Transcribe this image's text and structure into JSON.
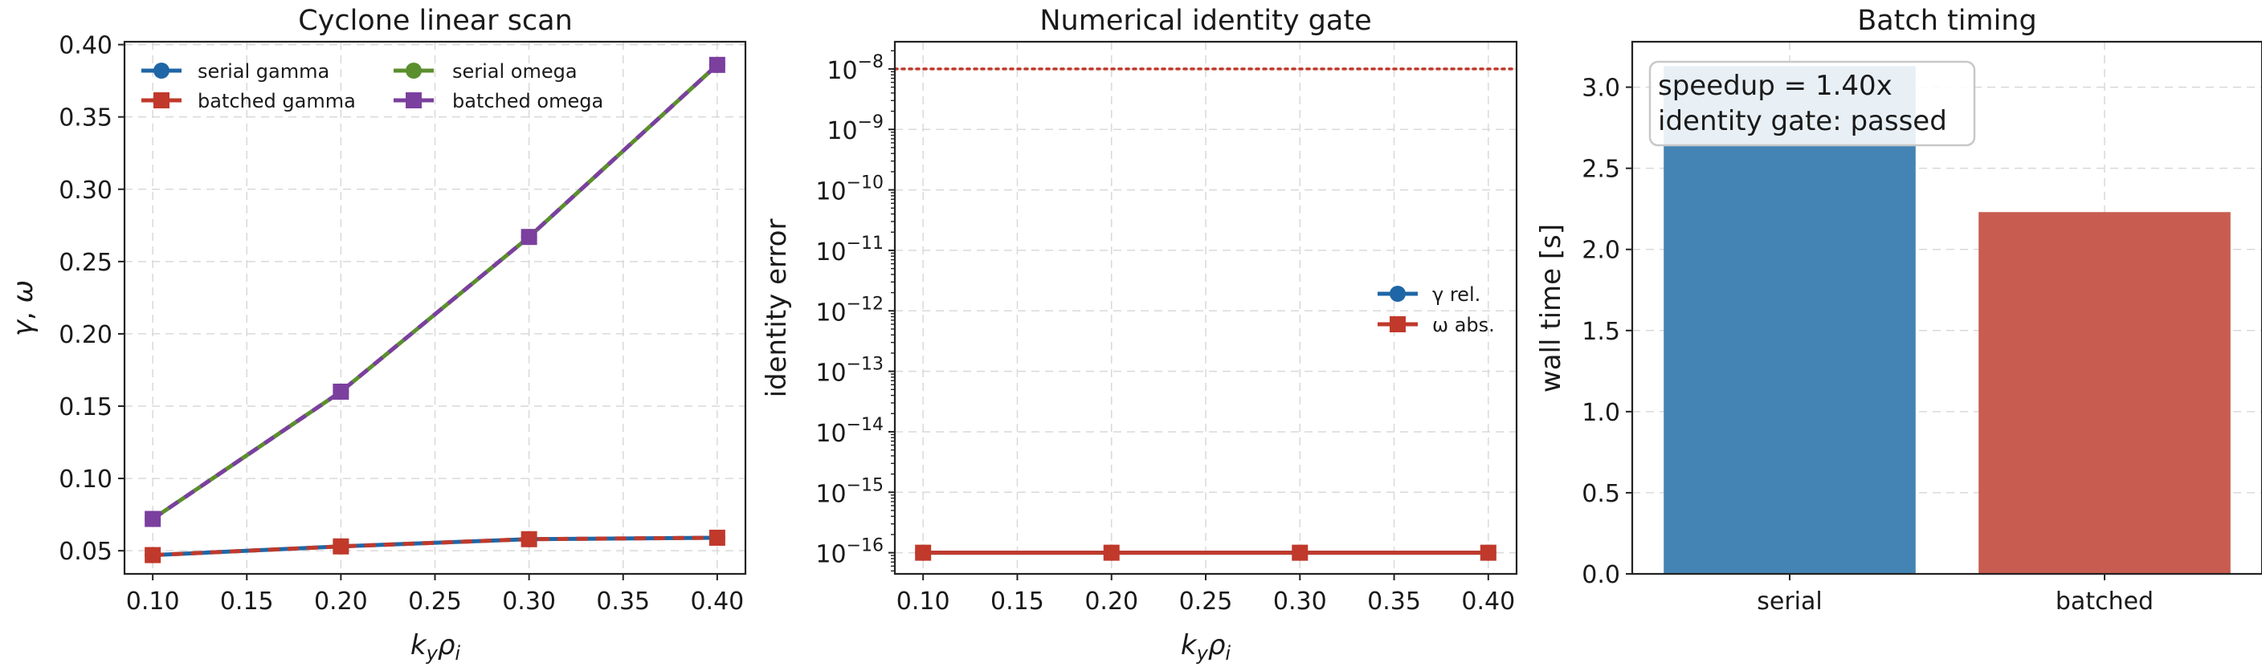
{
  "chart_data": [
    {
      "type": "line",
      "title": "Cyclone linear scan",
      "xlabel": "k_y ρ_i",
      "ylabel": "γ, ω",
      "x": [
        0.1,
        0.2,
        0.3,
        0.4
      ],
      "xlim": [
        0.085,
        0.415
      ],
      "ylim": [
        0.034,
        0.402
      ],
      "xticks": [
        "0.10",
        "0.15",
        "0.20",
        "0.25",
        "0.30",
        "0.35",
        "0.40"
      ],
      "yticks": [
        "0.05",
        "0.10",
        "0.15",
        "0.20",
        "0.25",
        "0.30",
        "0.35",
        "0.40"
      ],
      "grid": true,
      "legend": "top-left",
      "series": [
        {
          "name": "serial gamma",
          "values": [
            0.047,
            0.053,
            0.058,
            0.059
          ],
          "color": "#1f66a6",
          "marker": "circle"
        },
        {
          "name": "batched gamma",
          "values": [
            0.047,
            0.053,
            0.058,
            0.059
          ],
          "color": "#c0392b",
          "marker": "square",
          "dashed": true
        },
        {
          "name": "serial omega",
          "values": [
            0.072,
            0.16,
            0.267,
            0.386
          ],
          "color": "#5b8f2e",
          "marker": "circle"
        },
        {
          "name": "batched omega",
          "values": [
            0.072,
            0.16,
            0.267,
            0.386
          ],
          "color": "#7b3f9e",
          "marker": "square",
          "dashed": true
        }
      ]
    },
    {
      "type": "line",
      "title": "Numerical identity gate",
      "xlabel": "k_y ρ_i",
      "ylabel": "identity error",
      "yscale": "log",
      "x": [
        0.1,
        0.2,
        0.3,
        0.4
      ],
      "xlim": [
        0.085,
        0.415
      ],
      "ylim_log10": [
        -16.35,
        -7.55
      ],
      "xticks": [
        "0.10",
        "0.15",
        "0.20",
        "0.25",
        "0.30",
        "0.35",
        "0.40"
      ],
      "ytick_exponents": [
        "-8",
        "-9",
        "-10",
        "-11",
        "-12",
        "-13",
        "-14",
        "-15",
        "-16"
      ],
      "threshold": 1e-08,
      "grid": true,
      "legend": "center-right",
      "series": [
        {
          "name": "γ rel.",
          "values": [
            1e-16,
            1e-16,
            1e-16,
            1e-16
          ],
          "color": "#1f66a6",
          "marker": "circle"
        },
        {
          "name": "ω abs.",
          "values": [
            1e-16,
            1e-16,
            1e-16,
            1e-16
          ],
          "color": "#c0392b",
          "marker": "square"
        }
      ]
    },
    {
      "type": "bar",
      "title": "Batch timing",
      "ylabel": "wall time [s]",
      "categories": [
        "serial",
        "batched"
      ],
      "values": [
        3.13,
        2.23
      ],
      "colors": [
        "#4484b4",
        "#c95c50"
      ],
      "ylim": [
        0,
        3.28
      ],
      "yticks": [
        "0.0",
        "0.5",
        "1.0",
        "1.5",
        "2.0",
        "2.5",
        "3.0"
      ],
      "grid": true,
      "annotation": [
        "speedup = 1.40x",
        "identity gate: passed"
      ]
    }
  ]
}
